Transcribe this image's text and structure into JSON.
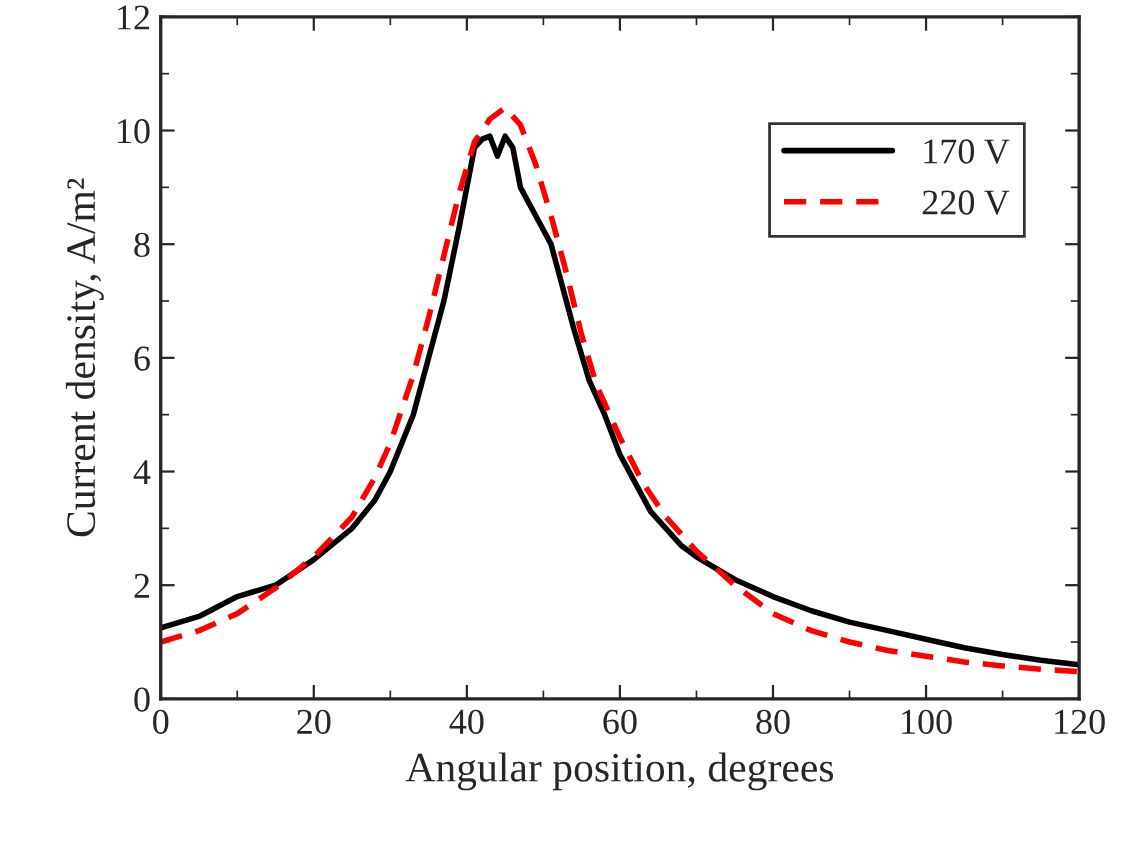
{
  "chart_data": {
    "type": "line",
    "xlabel": "Angular position, degrees",
    "ylabel": "Current density, A/m²",
    "xlim": [
      0,
      120
    ],
    "xticks": [
      0,
      20,
      40,
      60,
      80,
      100,
      120
    ],
    "ylim": [
      0,
      12
    ],
    "yticks": [
      0,
      2,
      4,
      6,
      8,
      10,
      12
    ],
    "grid": false,
    "legend": "top right",
    "marker": "none",
    "series": [
      {
        "name": "170 V",
        "color": "#000000",
        "line_style": "solid",
        "x": [
          0,
          5,
          10,
          15,
          20,
          25,
          28,
          30,
          33,
          35,
          37,
          39,
          40,
          41,
          42,
          43,
          44,
          45,
          46,
          47,
          49,
          51,
          52,
          54,
          56,
          58,
          60,
          62,
          64,
          66,
          68,
          70,
          75,
          80,
          85,
          90,
          95,
          100,
          105,
          110,
          115,
          120
        ],
        "values": [
          1.25,
          1.45,
          1.8,
          2.0,
          2.45,
          3.0,
          3.5,
          4.0,
          5.0,
          6.0,
          7.0,
          8.3,
          9.0,
          9.7,
          9.85,
          9.9,
          9.55,
          9.9,
          9.7,
          9.0,
          8.5,
          8.0,
          7.5,
          6.5,
          5.6,
          5.0,
          4.3,
          3.8,
          3.3,
          3.0,
          2.7,
          2.5,
          2.1,
          1.8,
          1.55,
          1.35,
          1.2,
          1.05,
          0.9,
          0.78,
          0.68,
          0.6
        ]
      },
      {
        "name": "220 V",
        "color": "#ff0000",
        "line_style": "dashed",
        "x": [
          0,
          5,
          10,
          15,
          20,
          25,
          28,
          30,
          33,
          35,
          37,
          39,
          41,
          43,
          45,
          47,
          49,
          51,
          53,
          55,
          57,
          60,
          63,
          66,
          70,
          75,
          80,
          85,
          90,
          95,
          100,
          105,
          110,
          115,
          120
        ],
        "values": [
          1.0,
          1.2,
          1.5,
          1.95,
          2.5,
          3.2,
          3.9,
          4.5,
          5.7,
          6.7,
          7.8,
          8.9,
          9.8,
          10.2,
          10.4,
          10.1,
          9.4,
          8.5,
          7.5,
          6.4,
          5.5,
          4.6,
          3.8,
          3.2,
          2.6,
          2.0,
          1.5,
          1.2,
          1.0,
          0.85,
          0.75,
          0.65,
          0.58,
          0.52,
          0.48
        ]
      }
    ]
  }
}
